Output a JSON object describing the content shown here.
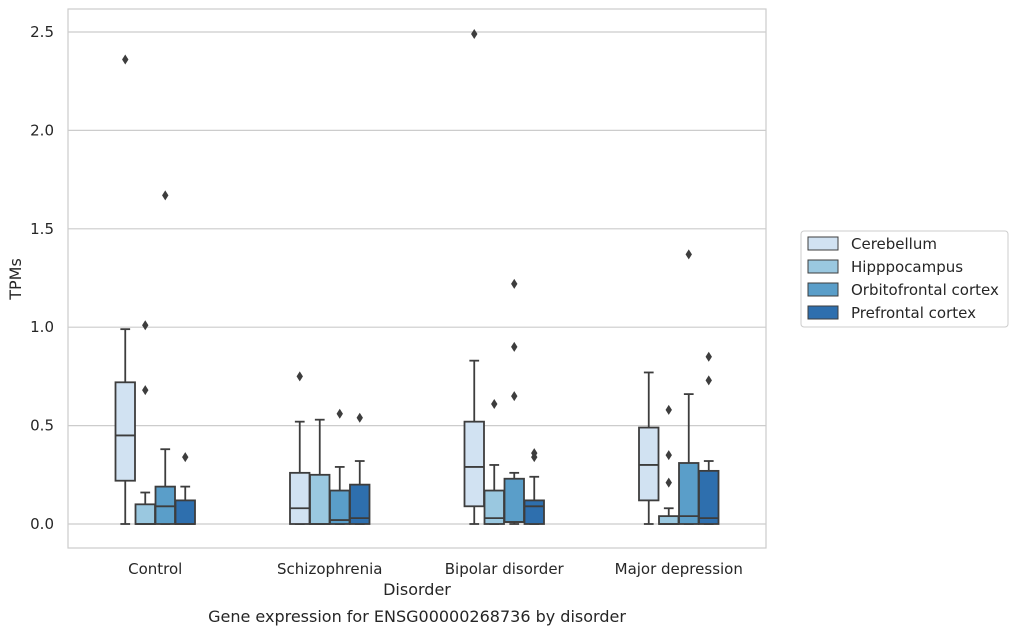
{
  "chart_data": {
    "type": "box",
    "title": "Gene expression for ENSG00000268736 by disorder",
    "xlabel": "Disorder",
    "ylabel": "TPMs",
    "ylim": [
      -0.12,
      2.62
    ],
    "yticks": [
      0.0,
      0.5,
      1.0,
      1.5,
      2.0,
      2.5
    ],
    "ytick_labels": [
      "0.0",
      "0.5",
      "1.0",
      "1.5",
      "2.0",
      "2.5"
    ],
    "grid": "horizontal",
    "legend_position": "right",
    "categories": [
      "Control",
      "Schizophrenia",
      "Bipolar disorder",
      "Major depression"
    ],
    "series": [
      {
        "name": "Cerebellum",
        "color": "#d1e2f2",
        "boxes": [
          {
            "whisker_low": 0.0,
            "q1": 0.22,
            "median": 0.45,
            "q3": 0.72,
            "whisker_high": 0.99,
            "outliers": [
              2.36
            ]
          },
          {
            "whisker_low": 0.0,
            "q1": 0.0,
            "median": 0.08,
            "q3": 0.26,
            "whisker_high": 0.52,
            "outliers": [
              0.75
            ]
          },
          {
            "whisker_low": 0.0,
            "q1": 0.09,
            "median": 0.29,
            "q3": 0.52,
            "whisker_high": 0.83,
            "outliers": [
              2.49
            ]
          },
          {
            "whisker_low": 0.0,
            "q1": 0.12,
            "median": 0.3,
            "q3": 0.49,
            "whisker_high": 0.77,
            "outliers": []
          }
        ]
      },
      {
        "name": "Hipppocampus",
        "color": "#9ac8e0",
        "boxes": [
          {
            "whisker_low": 0.0,
            "q1": 0.0,
            "median": 0.0,
            "q3": 0.1,
            "whisker_high": 0.16,
            "outliers": [
              1.01,
              0.68
            ]
          },
          {
            "whisker_low": 0.0,
            "q1": 0.0,
            "median": 0.0,
            "q3": 0.25,
            "whisker_high": 0.53,
            "outliers": []
          },
          {
            "whisker_low": 0.0,
            "q1": 0.0,
            "median": 0.03,
            "q3": 0.17,
            "whisker_high": 0.3,
            "outliers": [
              0.61
            ]
          },
          {
            "whisker_low": 0.0,
            "q1": 0.0,
            "median": 0.0,
            "q3": 0.04,
            "whisker_high": 0.08,
            "outliers": [
              0.58,
              0.35,
              0.21
            ]
          }
        ]
      },
      {
        "name": "Orbitofrontal cortex",
        "color": "#5a9ec9",
        "boxes": [
          {
            "whisker_low": 0.0,
            "q1": 0.0,
            "median": 0.09,
            "q3": 0.19,
            "whisker_high": 0.38,
            "outliers": [
              1.67
            ]
          },
          {
            "whisker_low": 0.0,
            "q1": 0.0,
            "median": 0.02,
            "q3": 0.17,
            "whisker_high": 0.29,
            "outliers": [
              0.56
            ]
          },
          {
            "whisker_low": 0.0,
            "q1": 0.01,
            "median": 0.01,
            "q3": 0.23,
            "whisker_high": 0.26,
            "outliers": [
              1.22,
              0.9,
              0.65
            ]
          },
          {
            "whisker_low": 0.0,
            "q1": 0.0,
            "median": 0.04,
            "q3": 0.31,
            "whisker_high": 0.66,
            "outliers": [
              1.37
            ]
          }
        ]
      },
      {
        "name": "Prefrontal cortex",
        "color": "#2e6fae",
        "boxes": [
          {
            "whisker_low": 0.0,
            "q1": 0.0,
            "median": 0.0,
            "q3": 0.12,
            "whisker_high": 0.19,
            "outliers": [
              0.34
            ]
          },
          {
            "whisker_low": 0.0,
            "q1": 0.0,
            "median": 0.03,
            "q3": 0.2,
            "whisker_high": 0.32,
            "outliers": [
              0.54
            ]
          },
          {
            "whisker_low": 0.0,
            "q1": 0.0,
            "median": 0.09,
            "q3": 0.12,
            "whisker_high": 0.24,
            "outliers": [
              0.36,
              0.34
            ]
          },
          {
            "whisker_low": 0.0,
            "q1": 0.0,
            "median": 0.03,
            "q3": 0.27,
            "whisker_high": 0.32,
            "outliers": [
              0.85,
              0.73
            ]
          }
        ]
      }
    ]
  }
}
